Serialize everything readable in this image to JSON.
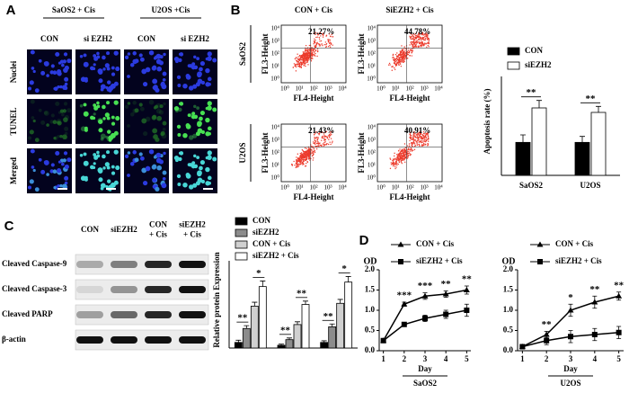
{
  "panel_labels": [
    "A",
    "B",
    "C",
    "D"
  ],
  "panel_a": {
    "groups": [
      "SaOS2 + Cis",
      "U2OS +Cis"
    ],
    "columns": [
      "CON",
      "si EZH2",
      "CON",
      "si EZH2"
    ],
    "rows": [
      "Nuclei",
      "TUNEL",
      "Merged"
    ]
  },
  "panel_b_flow": {
    "columns": [
      "CON + Cis",
      "SiEZH2 + Cis"
    ],
    "rows": [
      "SaOS2",
      "U2OS"
    ],
    "percentages": [
      [
        "21.27%",
        "44.78%"
      ],
      [
        "21.43%",
        "40.91%"
      ]
    ],
    "y_label": "FL3-Height",
    "x_label": "FL4-Height",
    "ticks": [
      "10⁰",
      "10¹",
      "10²",
      "10³",
      "10⁴"
    ]
  },
  "panel_c_blot": {
    "lanes": [
      [
        "CON"
      ],
      [
        "siEZH2"
      ],
      [
        "CON",
        "+ Cis"
      ],
      [
        "siEZH2",
        "+ Cis"
      ]
    ],
    "rows": [
      "Cleaved Caspase-9",
      "Cleaved Caspase-3",
      "Cleaved PARP",
      "β-actin"
    ]
  },
  "chart_data": [
    {
      "type": "bar",
      "y_label": "Apoptosis rate (%)",
      "categories": [
        "SaOS2",
        "U2OS"
      ],
      "ylim": [
        0,
        60
      ],
      "series": [
        {
          "name": "CON",
          "color": "#000000",
          "values": [
            22,
            22
          ],
          "errors": [
            5,
            4
          ]
        },
        {
          "name": "siEZH2",
          "color": "#ffffff",
          "values": [
            45,
            42
          ],
          "errors": [
            5,
            4
          ]
        }
      ],
      "annotations": [
        "**",
        "**"
      ]
    },
    {
      "type": "bar",
      "y_label": "Relative protein Expression",
      "categories": [
        null,
        null,
        null
      ],
      "ylim": [
        0,
        1.4
      ],
      "series": [
        {
          "name": "CON",
          "color": "#000000",
          "values": [
            0.1,
            0.05,
            0.1
          ],
          "errors": [
            0.04,
            0.02,
            0.03
          ]
        },
        {
          "name": "siEZH2",
          "color": "#8c8c8c",
          "values": [
            0.35,
            0.15,
            0.38
          ],
          "errors": [
            0.05,
            0.03,
            0.05
          ]
        },
        {
          "name": "CON + Cis",
          "color": "#d0d0d0",
          "values": [
            0.75,
            0.42,
            0.8
          ],
          "errors": [
            0.07,
            0.05,
            0.07
          ]
        },
        {
          "name": "siEZH2 + Cis",
          "color": "#ffffff",
          "values": [
            1.1,
            0.78,
            1.18
          ],
          "errors": [
            0.1,
            0.06,
            0.1
          ]
        }
      ],
      "annotations": [
        "**",
        "*",
        "**",
        "**",
        "**",
        "*"
      ]
    },
    {
      "type": "line",
      "y_label": "OD",
      "x_label": "Day",
      "group_label": "SaOS2",
      "x": [
        1,
        2,
        3,
        4,
        5
      ],
      "xlim": [
        0.8,
        5.2
      ],
      "xticks": [
        1,
        2,
        3,
        4,
        5
      ],
      "ylim": [
        0,
        2
      ],
      "yticks": [
        {
          "value": 0,
          "label": "0.0"
        },
        0.5,
        {
          "value": 1,
          "label": "1.0"
        },
        1.5,
        {
          "value": 2,
          "label": "2.0"
        }
      ],
      "series": [
        {
          "name": "CON + Cis",
          "color": "#000000",
          "marker": "triangle",
          "values": [
            0.25,
            1.15,
            1.35,
            1.4,
            1.5
          ],
          "errors": [
            0.03,
            0.05,
            0.08,
            0.08,
            0.1
          ]
        },
        {
          "name": "siEZH2 + Cis",
          "color": "#000000",
          "marker": "square",
          "values": [
            0.25,
            0.65,
            0.8,
            0.9,
            1.0
          ],
          "errors": [
            0.03,
            0.05,
            0.08,
            0.1,
            0.15
          ]
        }
      ],
      "annotations": [
        "***",
        "***",
        "**",
        "**"
      ]
    },
    {
      "type": "line",
      "y_label": "OD",
      "x_label": "Day",
      "group_label": "U2OS",
      "x": [
        1,
        2,
        3,
        4,
        5
      ],
      "xlim": [
        0.8,
        5.2
      ],
      "xticks": [
        1,
        2,
        3,
        4,
        5
      ],
      "ylim": [
        0,
        2
      ],
      "yticks": [
        {
          "value": 0,
          "label": "0.0"
        },
        0.5,
        {
          "value": 1,
          "label": "1.0"
        },
        1.5,
        {
          "value": 2,
          "label": "2.0"
        }
      ],
      "series": [
        {
          "name": "CON + Cis",
          "color": "#000000",
          "marker": "triangle",
          "values": [
            0.1,
            0.4,
            1.0,
            1.2,
            1.35
          ],
          "errors": [
            0.02,
            0.08,
            0.15,
            0.15,
            0.1
          ]
        },
        {
          "name": "siEZH2 + Cis",
          "color": "#000000",
          "marker": "square",
          "values": [
            0.1,
            0.25,
            0.35,
            0.4,
            0.45
          ],
          "errors": [
            0.02,
            0.1,
            0.15,
            0.15,
            0.15
          ]
        }
      ],
      "annotations": [
        "**",
        "*",
        "**",
        "**"
      ]
    }
  ]
}
